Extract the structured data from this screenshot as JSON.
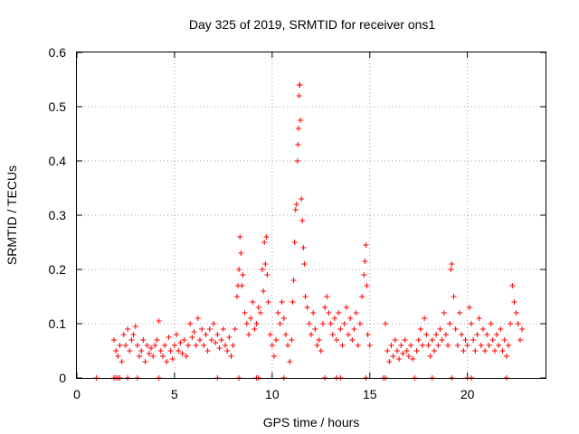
{
  "chart_data": {
    "type": "scatter",
    "title": "Day 325 of 2019, SRMTID for receiver ons1",
    "xlabel": "GPS time / hours",
    "ylabel": "SRMTID / TECUs",
    "xlim": [
      0,
      24
    ],
    "ylim": [
      0,
      0.6
    ],
    "xticks": [
      0,
      5,
      10,
      15,
      20
    ],
    "yticks": [
      0,
      0.1,
      0.2,
      0.3,
      0.4,
      0.5,
      0.6
    ],
    "xtick_labels": [
      "0",
      "5",
      "10",
      "15",
      "20"
    ],
    "ytick_labels": [
      "0",
      "0.1",
      "0.2",
      "0.3",
      "0.4",
      "0.5",
      "0.6"
    ],
    "marker": "+",
    "marker_color": "#ff0000",
    "grid": true,
    "series": [
      {
        "name": "ons1",
        "points": [
          [
            1.0,
            0.0
          ],
          [
            1.9,
            0.0
          ],
          [
            2.0,
            0.0
          ],
          [
            2.1,
            0.0
          ],
          [
            2.2,
            0.0
          ],
          [
            2.6,
            0.0
          ],
          [
            3.1,
            0.0
          ],
          [
            4.2,
            0.0
          ],
          [
            7.2,
            0.0
          ],
          [
            8.3,
            0.0
          ],
          [
            9.2,
            0.0
          ],
          [
            9.3,
            0.0
          ],
          [
            10.6,
            0.0
          ],
          [
            12.7,
            0.0
          ],
          [
            13.3,
            0.0
          ],
          [
            13.5,
            0.0
          ],
          [
            14.8,
            0.0
          ],
          [
            15.7,
            0.0
          ],
          [
            15.8,
            0.0
          ],
          [
            17.3,
            0.0
          ],
          [
            18.2,
            0.0
          ],
          [
            19.2,
            0.0
          ],
          [
            20.0,
            0.0
          ],
          [
            20.2,
            0.0
          ],
          [
            22.0,
            0.0
          ],
          [
            1.9,
            0.07
          ],
          [
            2.0,
            0.05
          ],
          [
            2.1,
            0.04
          ],
          [
            2.2,
            0.06
          ],
          [
            2.3,
            0.03
          ],
          [
            2.4,
            0.08
          ],
          [
            2.5,
            0.06
          ],
          [
            2.6,
            0.09
          ],
          [
            2.7,
            0.05
          ],
          [
            2.8,
            0.07
          ],
          [
            2.9,
            0.08
          ],
          [
            3.0,
            0.095
          ],
          [
            3.1,
            0.06
          ],
          [
            3.2,
            0.04
          ],
          [
            3.3,
            0.05
          ],
          [
            3.4,
            0.07
          ],
          [
            3.5,
            0.03
          ],
          [
            3.6,
            0.06
          ],
          [
            3.7,
            0.045
          ],
          [
            3.8,
            0.055
          ],
          [
            3.9,
            0.04
          ],
          [
            4.0,
            0.06
          ],
          [
            4.1,
            0.07
          ],
          [
            4.2,
            0.105
          ],
          [
            4.3,
            0.05
          ],
          [
            4.4,
            0.04
          ],
          [
            4.5,
            0.06
          ],
          [
            4.6,
            0.03
          ],
          [
            4.7,
            0.075
          ],
          [
            4.8,
            0.05
          ],
          [
            4.9,
            0.035
          ],
          [
            5.0,
            0.06
          ],
          [
            5.1,
            0.08
          ],
          [
            5.2,
            0.05
          ],
          [
            5.3,
            0.065
          ],
          [
            5.4,
            0.045
          ],
          [
            5.5,
            0.07
          ],
          [
            5.6,
            0.04
          ],
          [
            5.7,
            0.06
          ],
          [
            5.8,
            0.1
          ],
          [
            5.9,
            0.075
          ],
          [
            6.0,
            0.085
          ],
          [
            6.1,
            0.06
          ],
          [
            6.2,
            0.11
          ],
          [
            6.3,
            0.07
          ],
          [
            6.4,
            0.09
          ],
          [
            6.5,
            0.06
          ],
          [
            6.6,
            0.08
          ],
          [
            6.7,
            0.05
          ],
          [
            6.8,
            0.09
          ],
          [
            6.9,
            0.07
          ],
          [
            7.0,
            0.1
          ],
          [
            7.1,
            0.065
          ],
          [
            7.2,
            0.08
          ],
          [
            7.3,
            0.055
          ],
          [
            7.4,
            0.07
          ],
          [
            7.5,
            0.09
          ],
          [
            7.6,
            0.06
          ],
          [
            7.7,
            0.05
          ],
          [
            7.8,
            0.075
          ],
          [
            7.9,
            0.04
          ],
          [
            8.0,
            0.06
          ],
          [
            8.1,
            0.09
          ],
          [
            8.2,
            0.15
          ],
          [
            8.25,
            0.17
          ],
          [
            8.3,
            0.2
          ],
          [
            8.35,
            0.26
          ],
          [
            8.4,
            0.23
          ],
          [
            8.45,
            0.17
          ],
          [
            8.5,
            0.19
          ],
          [
            8.6,
            0.12
          ],
          [
            8.7,
            0.1
          ],
          [
            8.8,
            0.08
          ],
          [
            8.9,
            0.11
          ],
          [
            9.0,
            0.14
          ],
          [
            9.1,
            0.09
          ],
          [
            9.2,
            0.1
          ],
          [
            9.3,
            0.13
          ],
          [
            9.4,
            0.12
          ],
          [
            9.5,
            0.2
          ],
          [
            9.55,
            0.16
          ],
          [
            9.6,
            0.25
          ],
          [
            9.65,
            0.21
          ],
          [
            9.7,
            0.26
          ],
          [
            9.75,
            0.19
          ],
          [
            9.8,
            0.14
          ],
          [
            9.9,
            0.08
          ],
          [
            10.0,
            0.06
          ],
          [
            10.1,
            0.04
          ],
          [
            10.2,
            0.07
          ],
          [
            10.3,
            0.12
          ],
          [
            10.4,
            0.1
          ],
          [
            10.5,
            0.14
          ],
          [
            10.6,
            0.11
          ],
          [
            10.7,
            0.08
          ],
          [
            10.8,
            0.06
          ],
          [
            10.9,
            0.03
          ],
          [
            11.0,
            0.07
          ],
          [
            11.05,
            0.14
          ],
          [
            11.1,
            0.18
          ],
          [
            11.15,
            0.25
          ],
          [
            11.2,
            0.31
          ],
          [
            11.25,
            0.32
          ],
          [
            11.3,
            0.4
          ],
          [
            11.32,
            0.43
          ],
          [
            11.35,
            0.46
          ],
          [
            11.38,
            0.52
          ],
          [
            11.4,
            0.54
          ],
          [
            11.42,
            0.54
          ],
          [
            11.45,
            0.475
          ],
          [
            11.5,
            0.33
          ],
          [
            11.55,
            0.29
          ],
          [
            11.6,
            0.24
          ],
          [
            11.65,
            0.21
          ],
          [
            11.7,
            0.15
          ],
          [
            11.8,
            0.13
          ],
          [
            11.9,
            0.1
          ],
          [
            12.0,
            0.08
          ],
          [
            12.1,
            0.12
          ],
          [
            12.2,
            0.09
          ],
          [
            12.3,
            0.06
          ],
          [
            12.4,
            0.07
          ],
          [
            12.5,
            0.05
          ],
          [
            12.6,
            0.1
          ],
          [
            12.7,
            0.13
          ],
          [
            12.8,
            0.15
          ],
          [
            12.9,
            0.12
          ],
          [
            13.0,
            0.1
          ],
          [
            13.1,
            0.08
          ],
          [
            13.2,
            0.11
          ],
          [
            13.3,
            0.07
          ],
          [
            13.4,
            0.12
          ],
          [
            13.5,
            0.09
          ],
          [
            13.6,
            0.06
          ],
          [
            13.7,
            0.1
          ],
          [
            13.8,
            0.13
          ],
          [
            13.9,
            0.08
          ],
          [
            14.0,
            0.11
          ],
          [
            14.1,
            0.07
          ],
          [
            14.2,
            0.09
          ],
          [
            14.3,
            0.12
          ],
          [
            14.4,
            0.06
          ],
          [
            14.5,
            0.1
          ],
          [
            14.6,
            0.15
          ],
          [
            14.7,
            0.19
          ],
          [
            14.75,
            0.215
          ],
          [
            14.8,
            0.245
          ],
          [
            14.85,
            0.17
          ],
          [
            14.9,
            0.08
          ],
          [
            15.0,
            0.06
          ],
          [
            15.8,
            0.1
          ],
          [
            15.9,
            0.05
          ],
          [
            16.0,
            0.03
          ],
          [
            16.1,
            0.06
          ],
          [
            16.2,
            0.04
          ],
          [
            16.3,
            0.07
          ],
          [
            16.4,
            0.05
          ],
          [
            16.5,
            0.035
          ],
          [
            16.6,
            0.06
          ],
          [
            16.7,
            0.045
          ],
          [
            16.8,
            0.07
          ],
          [
            16.9,
            0.05
          ],
          [
            17.0,
            0.04
          ],
          [
            17.1,
            0.06
          ],
          [
            17.2,
            0.035
          ],
          [
            17.4,
            0.05
          ],
          [
            17.5,
            0.07
          ],
          [
            17.6,
            0.09
          ],
          [
            17.7,
            0.06
          ],
          [
            17.8,
            0.11
          ],
          [
            17.9,
            0.08
          ],
          [
            18.0,
            0.06
          ],
          [
            18.1,
            0.04
          ],
          [
            18.2,
            0.07
          ],
          [
            18.3,
            0.05
          ],
          [
            18.4,
            0.08
          ],
          [
            18.5,
            0.06
          ],
          [
            18.6,
            0.09
          ],
          [
            18.7,
            0.07
          ],
          [
            18.8,
            0.12
          ],
          [
            18.9,
            0.08
          ],
          [
            19.0,
            0.06
          ],
          [
            19.1,
            0.1
          ],
          [
            19.15,
            0.2
          ],
          [
            19.2,
            0.21
          ],
          [
            19.3,
            0.15
          ],
          [
            19.4,
            0.09
          ],
          [
            19.5,
            0.06
          ],
          [
            19.6,
            0.12
          ],
          [
            19.7,
            0.08
          ],
          [
            19.8,
            0.05
          ],
          [
            19.9,
            0.07
          ],
          [
            20.0,
            0.06
          ],
          [
            20.1,
            0.13
          ],
          [
            20.2,
            0.1
          ],
          [
            20.3,
            0.07
          ],
          [
            20.4,
            0.05
          ],
          [
            20.5,
            0.08
          ],
          [
            20.6,
            0.11
          ],
          [
            20.7,
            0.06
          ],
          [
            20.8,
            0.09
          ],
          [
            20.9,
            0.05
          ],
          [
            21.0,
            0.08
          ],
          [
            21.1,
            0.06
          ],
          [
            21.2,
            0.1
          ],
          [
            21.3,
            0.07
          ],
          [
            21.4,
            0.05
          ],
          [
            21.5,
            0.08
          ],
          [
            21.6,
            0.06
          ],
          [
            21.7,
            0.09
          ],
          [
            21.8,
            0.05
          ],
          [
            21.9,
            0.07
          ],
          [
            22.0,
            0.04
          ],
          [
            22.1,
            0.06
          ],
          [
            22.2,
            0.1
          ],
          [
            22.3,
            0.17
          ],
          [
            22.4,
            0.14
          ],
          [
            22.5,
            0.12
          ],
          [
            22.6,
            0.1
          ],
          [
            22.7,
            0.07
          ],
          [
            22.8,
            0.09
          ]
        ]
      }
    ]
  }
}
